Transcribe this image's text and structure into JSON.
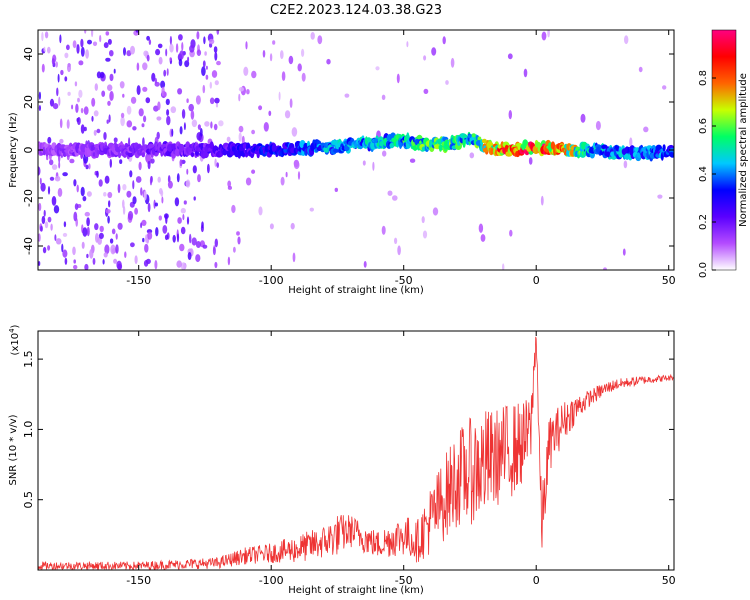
{
  "title": "C2E2.2023.124.03.38.G23",
  "chart_data": [
    {
      "type": "heatmap",
      "name": "spectrogram",
      "xlabel": "Height of straight line (km)",
      "ylabel": "Frequency (Hz)",
      "xlim": [
        -188,
        52
      ],
      "ylim": [
        -50,
        50
      ],
      "xticks": [
        -150,
        -100,
        -50,
        0,
        50
      ],
      "yticks": [
        -40,
        -20,
        0,
        20,
        40
      ],
      "colorbar": {
        "label": "Normalized spectral amplitude",
        "range": [
          0,
          1
        ],
        "ticks": [
          0.0,
          0.2,
          0.4,
          0.6,
          0.8
        ],
        "colormap": [
          "#ffffff",
          "#b44cff",
          "#5a00ff",
          "#0000ff",
          "#00c8ff",
          "#00ff64",
          "#c8ff00",
          "#ff6400",
          "#ff0000",
          "#ff0080"
        ]
      },
      "ridge": {
        "x": [
          -188,
          -150,
          -120,
          -100,
          -80,
          -60,
          -50,
          -40,
          -30,
          -25,
          -20,
          -10,
          0,
          10,
          20,
          30,
          40,
          52
        ],
        "freq": [
          0,
          0,
          0,
          0,
          1,
          3,
          4,
          2,
          3,
          5,
          2,
          0,
          1,
          0,
          0,
          -1,
          -1,
          -1
        ],
        "amplitude": [
          0.15,
          0.2,
          0.25,
          0.35,
          0.45,
          0.5,
          0.55,
          0.6,
          0.6,
          0.55,
          0.7,
          0.9,
          0.95,
          0.85,
          0.5,
          0.45,
          0.45,
          0.4
        ]
      }
    },
    {
      "type": "line",
      "name": "snr",
      "xlabel": "Height of straight line (km)",
      "ylabel": "SNR (10 * v/v)",
      "y_multiplier": "(x10",
      "y_multiplier_exp": "4",
      "y_multiplier_close": ")",
      "xlim": [
        -188,
        52
      ],
      "ylim": [
        0,
        1.7
      ],
      "xticks": [
        -150,
        -100,
        -50,
        0,
        50
      ],
      "yticks": [
        0.5,
        1.0,
        1.5
      ],
      "ytick_labels": [
        "0.5",
        "1.0",
        "1.5"
      ],
      "color": "#ee3333",
      "series": [
        {
          "name": "SNR",
          "x": [
            -188,
            -150,
            -120,
            -110,
            -100,
            -90,
            -80,
            -75,
            -70,
            -60,
            -50,
            -45,
            -40,
            -35,
            -30,
            -25,
            -20,
            -15,
            -10,
            -5,
            -2,
            0,
            2,
            5,
            10,
            15,
            20,
            25,
            30,
            40,
            52
          ],
          "y": [
            0.03,
            0.03,
            0.05,
            0.1,
            0.12,
            0.15,
            0.2,
            0.25,
            0.28,
            0.18,
            0.25,
            0.2,
            0.35,
            0.5,
            0.65,
            0.7,
            0.75,
            0.8,
            0.85,
            0.9,
            1.0,
            1.7,
            0.3,
            0.9,
            1.05,
            1.15,
            1.22,
            1.28,
            1.32,
            1.35,
            1.37
          ],
          "noise": [
            0.03,
            0.03,
            0.04,
            0.06,
            0.07,
            0.1,
            0.12,
            0.15,
            0.12,
            0.1,
            0.15,
            0.15,
            0.25,
            0.3,
            0.35,
            0.38,
            0.4,
            0.35,
            0.35,
            0.3,
            0.25,
            0.1,
            0.25,
            0.2,
            0.15,
            0.1,
            0.06,
            0.05,
            0.04,
            0.03,
            0.02
          ]
        }
      ]
    }
  ]
}
